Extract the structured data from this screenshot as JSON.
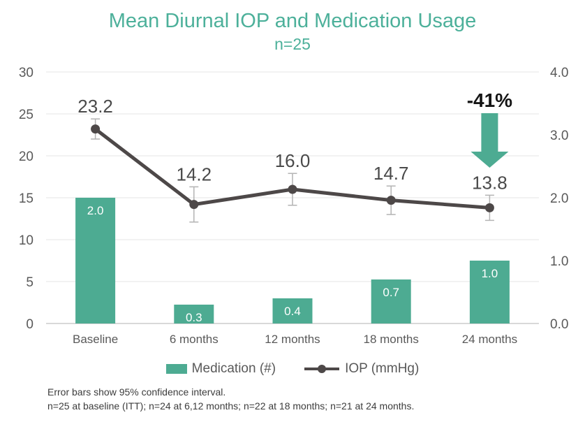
{
  "title": "Mean Diurnal IOP and Medication Usage",
  "subtitle": "n=25",
  "colors": {
    "teal": "#4DAB92",
    "title_teal": "#4CB09A",
    "line": "#4D4848",
    "error_bar": "#B3B3B3",
    "gridline": "#E5E5E5",
    "axis_line": "#D8D8D8",
    "tick_text": "#595959",
    "data_label_text": "#4A4A4A",
    "annotation_text": "#151515",
    "bar_label_text": "#FFFFFF",
    "footnote_text": "#3C3C3C"
  },
  "chart_data": {
    "type": "combo",
    "categories": [
      "Baseline",
      "6 months",
      "12 months",
      "18 months",
      "24 months"
    ],
    "series": [
      {
        "name": "Medication (#)",
        "type": "bar",
        "axis": "right",
        "values": [
          2.0,
          0.3,
          0.4,
          0.7,
          1.0
        ]
      },
      {
        "name": "IOP (mmHg)",
        "type": "line",
        "axis": "left",
        "values": [
          23.2,
          14.2,
          16.0,
          14.7,
          13.8
        ],
        "ci_95": [
          1.2,
          2.1,
          1.9,
          1.7,
          1.5
        ]
      }
    ],
    "left_axis": {
      "min": 0,
      "max": 30,
      "ticks": [
        0,
        5,
        10,
        15,
        20,
        25,
        30
      ]
    },
    "right_axis": {
      "min": 0,
      "max": 4,
      "ticks": [
        0,
        1,
        2,
        3,
        4
      ]
    },
    "annotation": {
      "text": "-41%",
      "category_index": 4
    },
    "legend_position": "bottom",
    "grid": true
  },
  "footnotes": [
    "Error bars show 95% confidence interval.",
    "n=25 at baseline (ITT); n=24 at 6,12 months; n=22 at 18 months; n=21 at 24 months."
  ]
}
